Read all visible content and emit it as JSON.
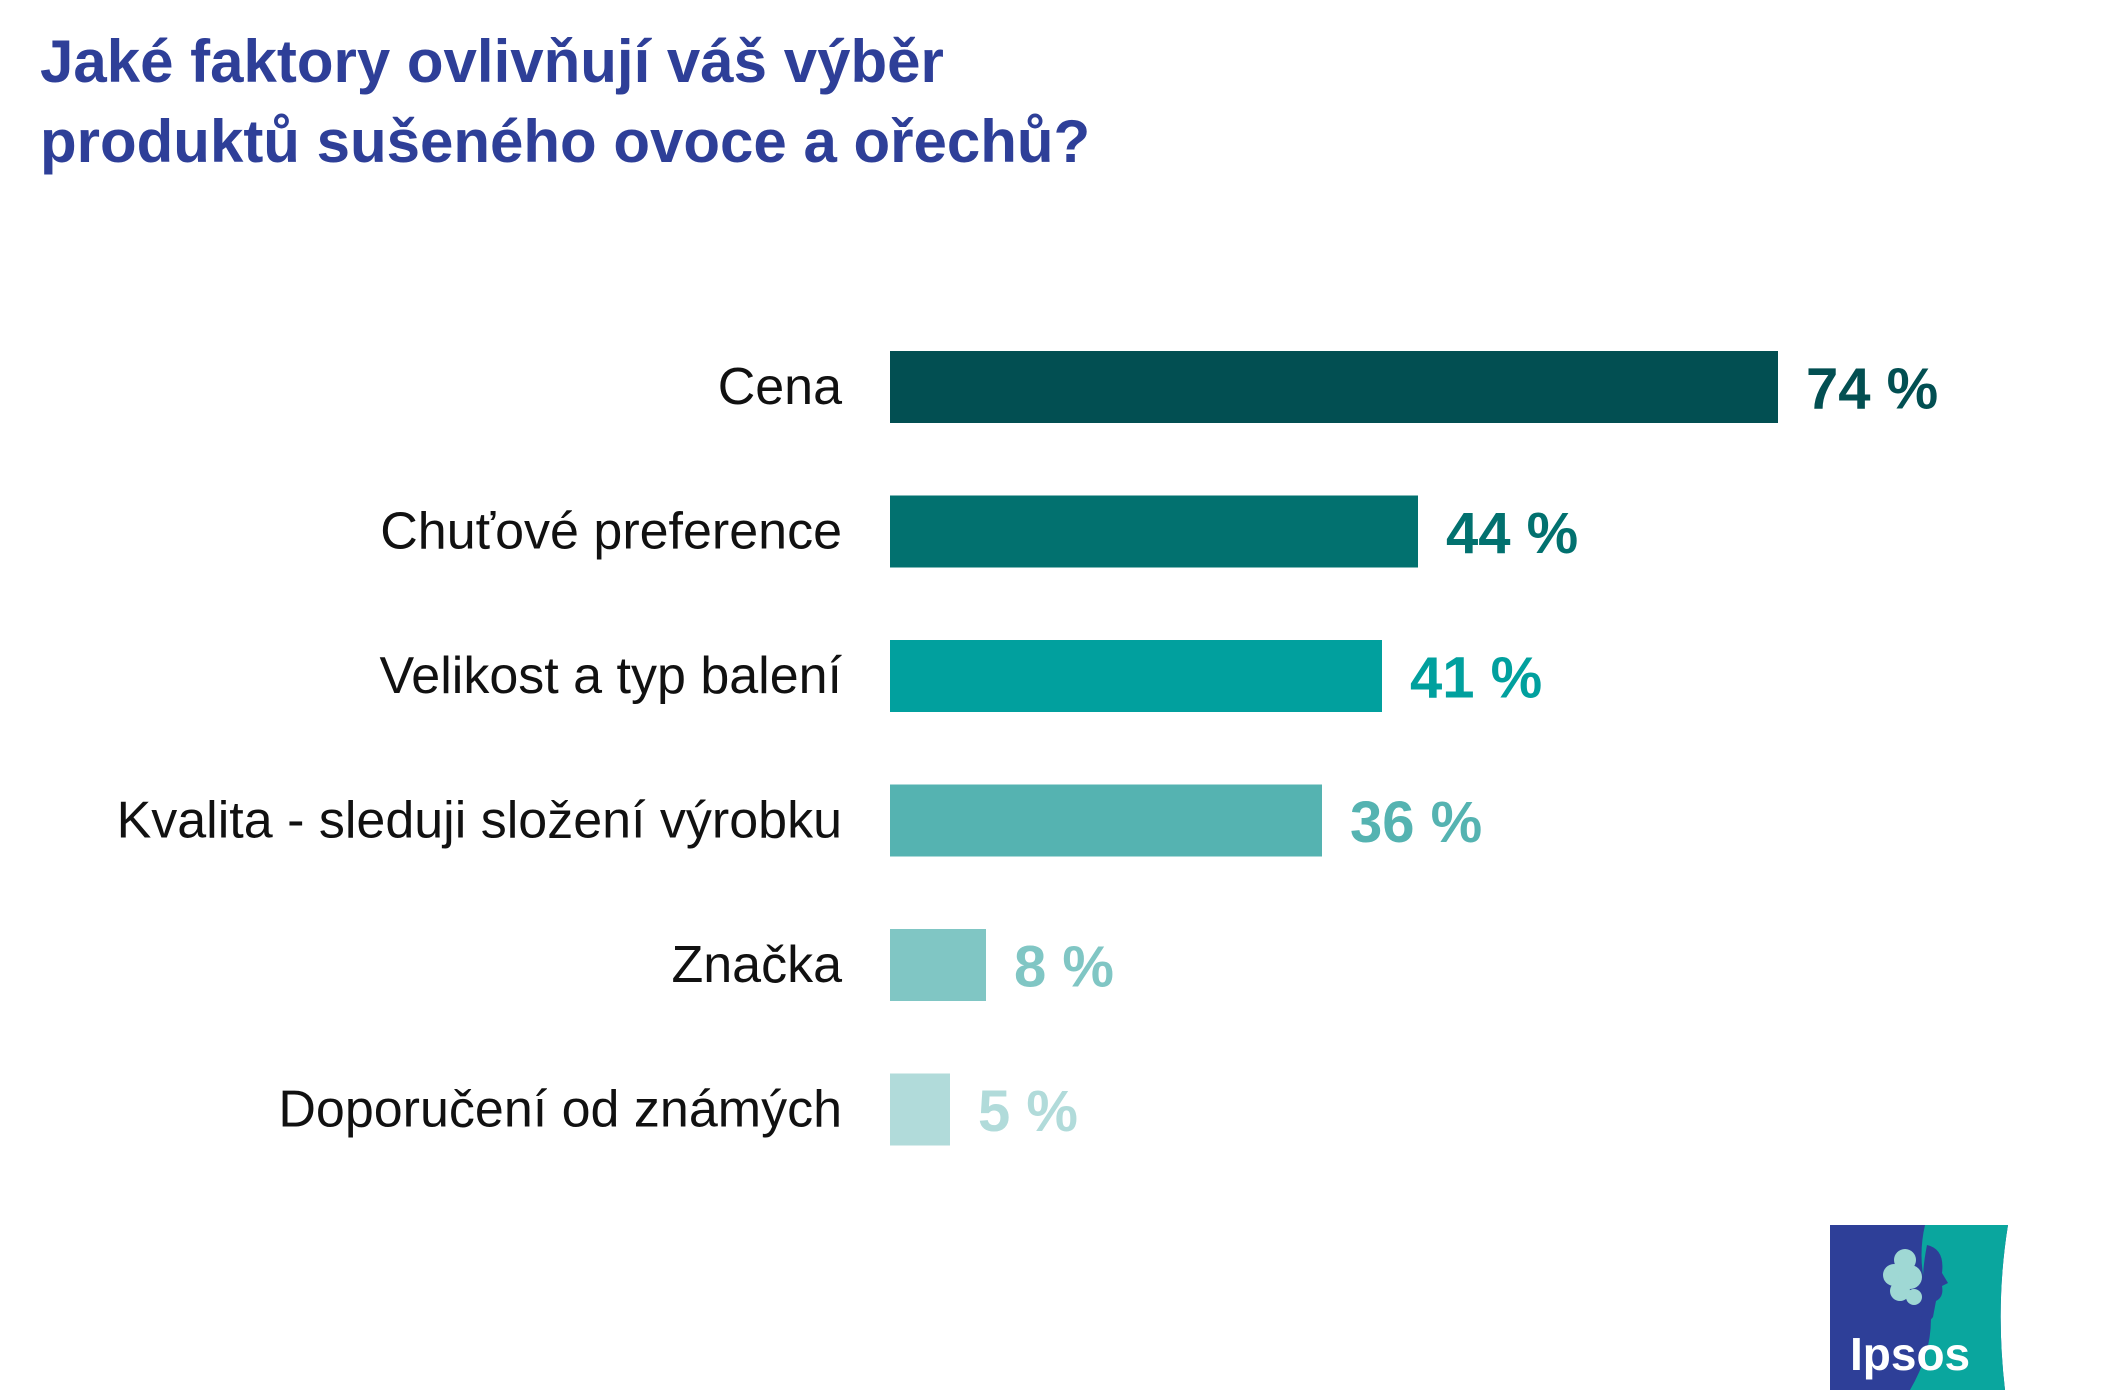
{
  "title": {
    "line1": "Jaké faktory ovlivňují váš výběr",
    "line2": "produktů sušeného ovoce a ořechů?"
  },
  "chart_data": {
    "type": "bar",
    "orientation": "horizontal",
    "categories": [
      "Cena",
      "Chuťové preference",
      "Velikost a typ balení",
      "Kvalita - sleduji složení výrobku",
      "Značka",
      "Doporučení od známých"
    ],
    "values": [
      74,
      44,
      41,
      36,
      8,
      5
    ],
    "value_labels": [
      "74 %",
      "44 %",
      "41 %",
      "36 %",
      "8 %",
      "5 %"
    ],
    "unit": "%",
    "xlim": [
      0,
      100
    ],
    "grid": false,
    "legend": "none",
    "colors": [
      "#024f52",
      "#02716f",
      "#01a09e",
      "#55b3b1",
      "#80c6c4",
      "#b1dbda"
    ]
  },
  "logo": {
    "text": "Ipsos",
    "colors": {
      "left": "#2e3f98",
      "right": "#0aa69e"
    }
  }
}
